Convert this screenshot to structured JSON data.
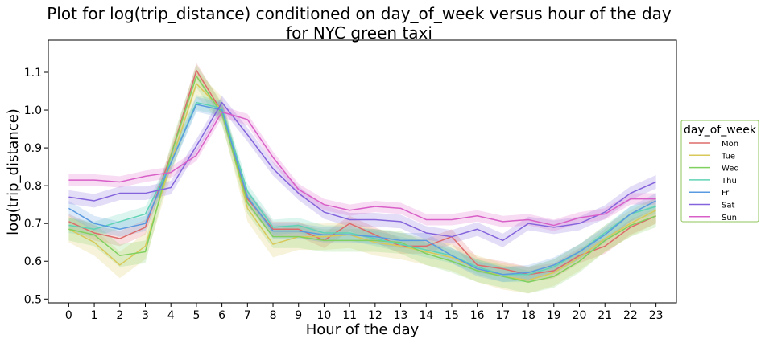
{
  "chart_data": {
    "type": "line",
    "title_line1": "Plot for log(trip_distance) conditioned on day_of_week versus hour of the day",
    "title_line2": "for NYC green taxi",
    "xlabel": "Hour of the day",
    "ylabel": "log(trip_distance)",
    "xlim": [
      -0.8,
      23.8
    ],
    "ylim": [
      0.49,
      1.185
    ],
    "x_ticks": [
      0,
      1,
      2,
      3,
      4,
      5,
      6,
      7,
      8,
      9,
      10,
      11,
      12,
      13,
      14,
      15,
      16,
      17,
      18,
      19,
      20,
      21,
      22,
      23
    ],
    "y_ticks": [
      0.5,
      0.6,
      0.7,
      0.8,
      0.9,
      1.0,
      1.1
    ],
    "y_tick_labels": [
      "0.5",
      "0.6",
      "0.7",
      "0.8",
      "0.9",
      "1.0",
      "1.1"
    ],
    "legend": {
      "title": "day_of_week",
      "placement": "outside-right"
    },
    "grid": false,
    "x": [
      0,
      1,
      2,
      3,
      4,
      5,
      6,
      7,
      8,
      9,
      10,
      11,
      12,
      13,
      14,
      15,
      16,
      17,
      18,
      19,
      20,
      21,
      22,
      23
    ],
    "series": [
      {
        "name": "Mon",
        "color": "#dd6b6b",
        "band": 0.02,
        "values": [
          0.705,
          0.675,
          0.66,
          0.69,
          0.88,
          1.105,
          0.995,
          0.765,
          0.685,
          0.685,
          0.655,
          0.7,
          0.67,
          0.64,
          0.64,
          0.665,
          0.59,
          0.58,
          0.565,
          0.575,
          0.615,
          0.64,
          0.69,
          0.72
        ]
      },
      {
        "name": "Tue",
        "color": "#d9c85a",
        "band": 0.035,
        "values": [
          0.685,
          0.65,
          0.59,
          0.64,
          0.86,
          1.07,
          1.0,
          0.74,
          0.645,
          0.665,
          0.665,
          0.67,
          0.65,
          0.64,
          0.625,
          0.61,
          0.58,
          0.56,
          0.55,
          0.57,
          0.61,
          0.66,
          0.7,
          0.735
        ]
      },
      {
        "name": "Wed",
        "color": "#7fd05e",
        "band": 0.03,
        "values": [
          0.685,
          0.67,
          0.615,
          0.625,
          0.88,
          1.09,
          0.99,
          0.755,
          0.665,
          0.665,
          0.655,
          0.655,
          0.655,
          0.65,
          0.62,
          0.6,
          0.575,
          0.56,
          0.545,
          0.56,
          0.6,
          0.655,
          0.695,
          0.72
        ]
      },
      {
        "name": "Thu",
        "color": "#5fd3b5",
        "band": 0.02,
        "values": [
          0.695,
          0.685,
          0.705,
          0.725,
          0.86,
          1.02,
          1.005,
          0.785,
          0.69,
          0.695,
          0.675,
          0.675,
          0.66,
          0.645,
          0.63,
          0.615,
          0.585,
          0.565,
          0.565,
          0.585,
          0.625,
          0.675,
          0.725,
          0.745
        ]
      },
      {
        "name": "Fri",
        "color": "#5a9ae0",
        "band": 0.02,
        "values": [
          0.74,
          0.7,
          0.685,
          0.7,
          0.86,
          1.015,
          1.0,
          0.77,
          0.68,
          0.68,
          0.67,
          0.67,
          0.665,
          0.655,
          0.655,
          0.615,
          0.58,
          0.565,
          0.57,
          0.59,
          0.625,
          0.67,
          0.725,
          0.76
        ]
      },
      {
        "name": "Sat",
        "color": "#8464dc",
        "band": 0.018,
        "values": [
          0.77,
          0.76,
          0.78,
          0.78,
          0.795,
          0.905,
          1.02,
          0.935,
          0.845,
          0.78,
          0.73,
          0.71,
          0.71,
          0.705,
          0.675,
          0.665,
          0.685,
          0.655,
          0.7,
          0.69,
          0.7,
          0.73,
          0.78,
          0.81
        ]
      },
      {
        "name": "Sun",
        "color": "#d95fc8",
        "band": 0.015,
        "values": [
          0.815,
          0.815,
          0.81,
          0.825,
          0.835,
          0.88,
          0.995,
          0.975,
          0.875,
          0.79,
          0.75,
          0.735,
          0.745,
          0.74,
          0.71,
          0.71,
          0.72,
          0.705,
          0.71,
          0.695,
          0.715,
          0.725,
          0.765,
          0.765
        ]
      }
    ]
  }
}
